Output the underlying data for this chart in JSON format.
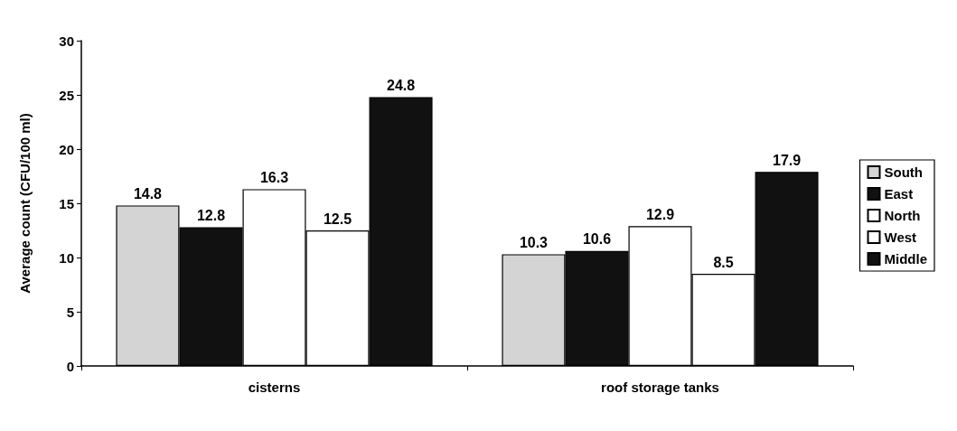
{
  "chart_data": {
    "type": "bar",
    "ylabel": "Average count (CFU/100 ml)",
    "categories": [
      "cisterns",
      "roof storage tanks"
    ],
    "series": [
      {
        "name": "South",
        "color": "#d4d4d4",
        "values": [
          14.8,
          10.3
        ]
      },
      {
        "name": "East",
        "color": "#111111",
        "values": [
          12.8,
          10.6
        ]
      },
      {
        "name": "North",
        "color": "#ffffff",
        "values": [
          16.3,
          12.9
        ]
      },
      {
        "name": "West",
        "color": "#ffffff",
        "values": [
          12.5,
          8.5
        ]
      },
      {
        "name": "Middle",
        "color": "#111111",
        "values": [
          24.8,
          17.9
        ]
      }
    ],
    "ylim": [
      0,
      30
    ],
    "yticks": [
      0,
      5,
      10,
      15,
      20,
      25,
      30
    ],
    "data_labels": true,
    "grid": false,
    "legend": "right"
  }
}
